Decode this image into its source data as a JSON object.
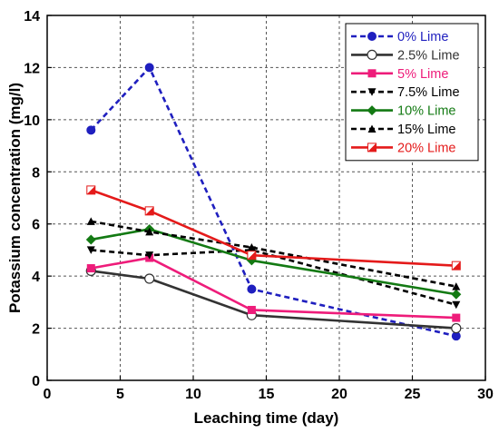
{
  "chart_data": {
    "type": "line",
    "xlabel": "Leaching time (day)",
    "ylabel": "Potassium concentration (mg/l)",
    "xlim": [
      0,
      30
    ],
    "ylim": [
      0,
      14
    ],
    "xticks": [
      0,
      5,
      10,
      15,
      20,
      25,
      30
    ],
    "yticks": [
      0,
      2,
      4,
      6,
      8,
      10,
      12,
      14
    ],
    "grid": true,
    "legend_position": "top-right",
    "series": [
      {
        "name": "0% Lime",
        "x": [
          3,
          7,
          14,
          28
        ],
        "y": [
          9.6,
          12.0,
          3.5,
          1.7
        ],
        "color": "#1f1fbf",
        "dash": "dashed",
        "marker": "circle-filled"
      },
      {
        "name": "2.5% Lime",
        "x": [
          3,
          7,
          14,
          28
        ],
        "y": [
          4.2,
          3.9,
          2.5,
          2.0
        ],
        "color": "#333333",
        "dash": "solid",
        "marker": "circle-open"
      },
      {
        "name": "5% Lime",
        "x": [
          3,
          7,
          14,
          28
        ],
        "y": [
          4.3,
          4.7,
          2.7,
          2.4
        ],
        "color": "#ee1c7a",
        "dash": "solid",
        "marker": "square-filled"
      },
      {
        "name": "7.5% Lime",
        "x": [
          3,
          7,
          14,
          28
        ],
        "y": [
          5.0,
          4.8,
          5.0,
          2.9
        ],
        "color": "#000000",
        "dash": "dashed",
        "marker": "triangle-down"
      },
      {
        "name": "10% Lime",
        "x": [
          3,
          7,
          14,
          28
        ],
        "y": [
          5.4,
          5.8,
          4.6,
          3.3
        ],
        "color": "#137a13",
        "dash": "solid",
        "marker": "diamond"
      },
      {
        "name": "15% Lime",
        "x": [
          3,
          7,
          14,
          28
        ],
        "y": [
          6.1,
          5.7,
          5.1,
          3.6
        ],
        "color": "#000000",
        "dash": "dashed",
        "marker": "triangle-up"
      },
      {
        "name": "20% Lime",
        "x": [
          3,
          7,
          14,
          28
        ],
        "y": [
          7.3,
          6.5,
          4.8,
          4.4
        ],
        "color": "#e41a1a",
        "dash": "solid",
        "marker": "half-square"
      }
    ]
  }
}
